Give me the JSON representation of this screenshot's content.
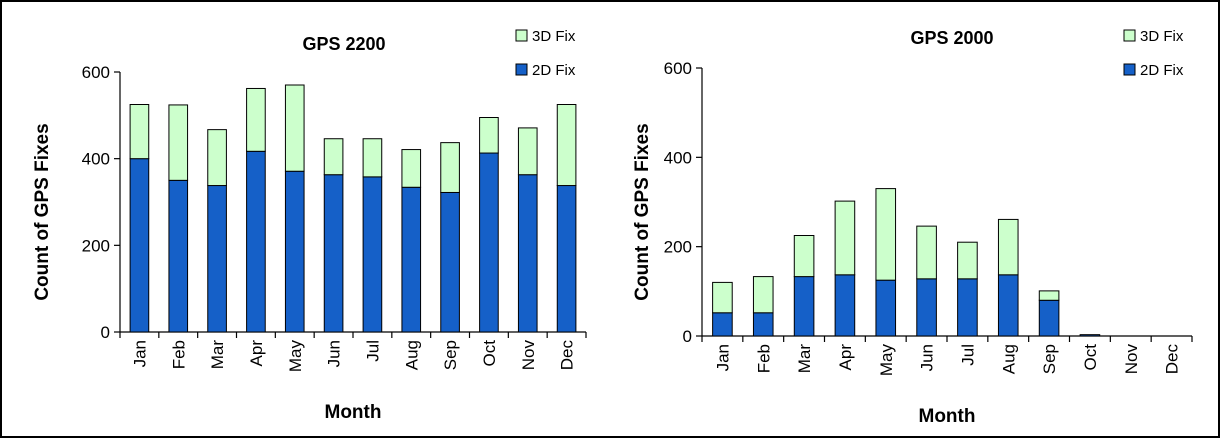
{
  "chart_data": [
    {
      "type": "bar",
      "stacked": true,
      "title": "GPS 2200",
      "xlabel": "Month",
      "ylabel": "Count of GPS Fixes",
      "ylim": [
        0,
        600
      ],
      "yticks": [
        0,
        200,
        400,
        600
      ],
      "categories": [
        "Jan",
        "Feb",
        "Mar",
        "Apr",
        "May",
        "Jun",
        "Jul",
        "Aug",
        "Sep",
        "Oct",
        "Nov",
        "Dec"
      ],
      "series": [
        {
          "name": "2D Fix",
          "color": "#1560c8",
          "values": [
            400,
            350,
            338,
            417,
            371,
            363,
            358,
            334,
            322,
            413,
            363,
            338
          ]
        },
        {
          "name": "3D Fix",
          "color": "#ccffcc",
          "values": [
            125,
            174,
            129,
            145,
            199,
            83,
            88,
            87,
            115,
            82,
            108,
            187
          ]
        }
      ],
      "legend": "top-right"
    },
    {
      "type": "bar",
      "stacked": true,
      "title": "GPS 2000",
      "xlabel": "Month",
      "ylabel": "Count of GPS Fixes",
      "ylim": [
        0,
        600
      ],
      "yticks": [
        0,
        200,
        400,
        600
      ],
      "categories": [
        "Jan",
        "Feb",
        "Mar",
        "Apr",
        "May",
        "Jun",
        "Jul",
        "Aug",
        "Sep",
        "Oct",
        "Nov",
        "Dec"
      ],
      "series": [
        {
          "name": "2D Fix",
          "color": "#1560c8",
          "values": [
            52,
            52,
            133,
            137,
            125,
            128,
            128,
            137,
            80,
            3,
            0,
            0
          ]
        },
        {
          "name": "3D Fix",
          "color": "#ccffcc",
          "values": [
            68,
            81,
            92,
            165,
            205,
            118,
            82,
            124,
            21,
            0,
            0,
            0
          ]
        }
      ],
      "legend": "top-right"
    }
  ]
}
